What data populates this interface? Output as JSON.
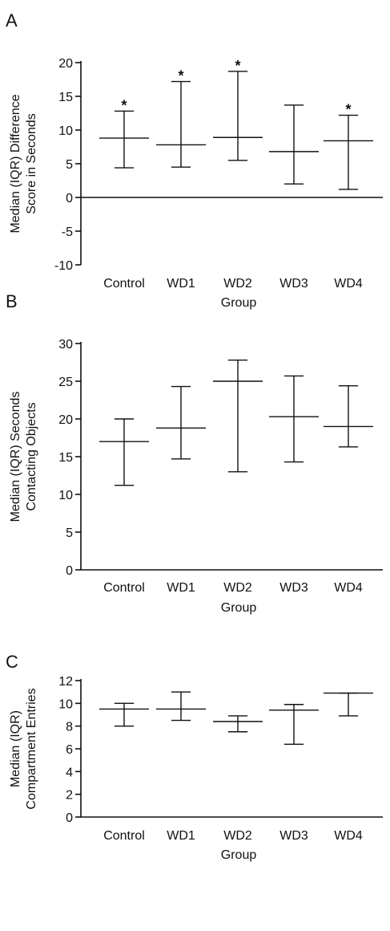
{
  "chart_data": [
    {
      "type": "box",
      "panel_label": "A",
      "ylabel": "Median (IQR) Difference Score in Seconds",
      "xlabel": "Group",
      "ylim": [
        -10,
        20
      ],
      "yticks": [
        -10,
        -5,
        0,
        5,
        10,
        15,
        20
      ],
      "zero_line": true,
      "categories": [
        "Control",
        "WD1",
        "WD2",
        "WD3",
        "WD4"
      ],
      "series": [
        {
          "values": [
            {
              "median": 8.8,
              "q1": 4.4,
              "q3": 12.8,
              "significant": true
            },
            {
              "median": 7.8,
              "q1": 4.5,
              "q3": 17.2,
              "significant": true
            },
            {
              "median": 8.9,
              "q1": 5.5,
              "q3": 18.7,
              "significant": true
            },
            {
              "median": 6.8,
              "q1": 2.0,
              "q3": 13.7,
              "significant": false
            },
            {
              "median": 8.4,
              "q1": 1.2,
              "q3": 12.2,
              "significant": true
            }
          ]
        }
      ],
      "annotation_symbol": "*"
    },
    {
      "type": "box",
      "panel_label": "B",
      "ylabel": "Median (IQR) Seconds Contacting Objects",
      "xlabel": "Group",
      "ylim": [
        0,
        30
      ],
      "yticks": [
        0,
        5,
        10,
        15,
        20,
        25,
        30
      ],
      "zero_line": false,
      "categories": [
        "Control",
        "WD1",
        "WD2",
        "WD3",
        "WD4"
      ],
      "series": [
        {
          "values": [
            {
              "median": 17.0,
              "q1": 11.2,
              "q3": 20.0,
              "significant": false
            },
            {
              "median": 18.8,
              "q1": 14.7,
              "q3": 24.3,
              "significant": false
            },
            {
              "median": 25.0,
              "q1": 13.0,
              "q3": 27.8,
              "significant": false
            },
            {
              "median": 20.3,
              "q1": 14.3,
              "q3": 25.7,
              "significant": false
            },
            {
              "median": 19.0,
              "q1": 16.3,
              "q3": 24.4,
              "significant": false
            }
          ]
        }
      ],
      "annotation_symbol": ""
    },
    {
      "type": "box",
      "panel_label": "C",
      "ylabel": "Median (IQR) Compartment Entries",
      "xlabel": "Group",
      "ylim": [
        0,
        12
      ],
      "yticks": [
        0,
        2,
        4,
        6,
        8,
        10,
        12
      ],
      "zero_line": false,
      "categories": [
        "Control",
        "WD1",
        "WD2",
        "WD3",
        "WD4"
      ],
      "series": [
        {
          "values": [
            {
              "median": 9.5,
              "q1": 8.0,
              "q3": 10.0,
              "significant": false
            },
            {
              "median": 9.5,
              "q1": 8.5,
              "q3": 11.0,
              "significant": false
            },
            {
              "median": 8.4,
              "q1": 7.5,
              "q3": 8.9,
              "significant": false
            },
            {
              "median": 9.4,
              "q1": 6.4,
              "q3": 9.9,
              "significant": false
            },
            {
              "median": 10.9,
              "q1": 8.9,
              "q3": 10.9,
              "significant": false
            }
          ]
        }
      ],
      "annotation_symbol": ""
    }
  ]
}
